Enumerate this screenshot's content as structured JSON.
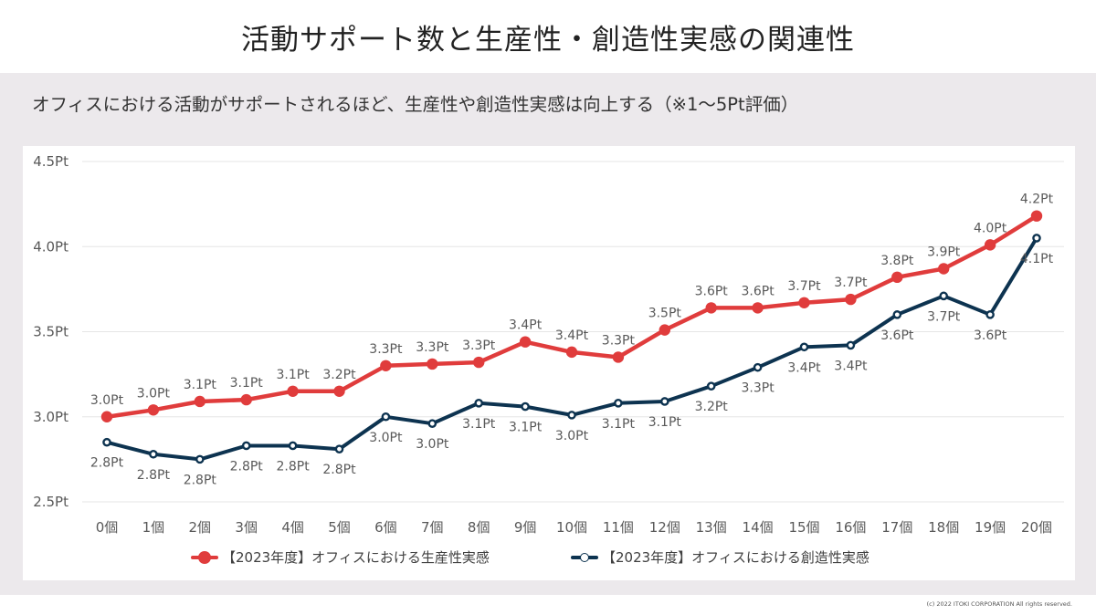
{
  "title": "活動サポート数と生産性・創造性実感の関連性",
  "subtitle": "オフィスにおける活動がサポートされるほど、生産性や創造性実感は向上する（※1〜5Pt評価）",
  "footer": "(c) 2022 ITOKI CORPORATION All rights reserved.",
  "colors": {
    "productivity": "#e03c3c",
    "creativity": "#0d3350",
    "band": "#ece9ec"
  },
  "chart_data": {
    "type": "line",
    "categories": [
      "0個",
      "1個",
      "2個",
      "3個",
      "4個",
      "5個",
      "6個",
      "7個",
      "8個",
      "9個",
      "10個",
      "11個",
      "12個",
      "13個",
      "14個",
      "15個",
      "16個",
      "17個",
      "18個",
      "19個",
      "20個"
    ],
    "ylim": [
      2.5,
      4.5
    ],
    "yticks": [
      {
        "value": 2.5,
        "label": "2.5Pt"
      },
      {
        "value": 3.0,
        "label": "3.0Pt"
      },
      {
        "value": 3.5,
        "label": "3.5Pt"
      },
      {
        "value": 4.0,
        "label": "4.0Pt"
      },
      {
        "value": 4.5,
        "label": "4.5Pt"
      }
    ],
    "grid": true,
    "legend_position": "bottom",
    "series": [
      {
        "name": "【2023年度】オフィスにおける生産性実感",
        "color": "#e03c3c",
        "marker": "filled",
        "label_position": "above",
        "values": [
          3.0,
          3.04,
          3.09,
          3.1,
          3.15,
          3.15,
          3.3,
          3.31,
          3.32,
          3.44,
          3.38,
          3.35,
          3.51,
          3.64,
          3.64,
          3.67,
          3.69,
          3.82,
          3.87,
          4.01,
          4.18
        ],
        "labels": [
          "3.0Pt",
          "3.0Pt",
          "3.1Pt",
          "3.1Pt",
          "3.1Pt",
          "3.2Pt",
          "3.3Pt",
          "3.3Pt",
          "3.3Pt",
          "3.4Pt",
          "3.4Pt",
          "3.3Pt",
          "3.5Pt",
          "3.6Pt",
          "3.6Pt",
          "3.7Pt",
          "3.7Pt",
          "3.8Pt",
          "3.9Pt",
          "4.0Pt",
          "4.2Pt"
        ]
      },
      {
        "name": "【2023年度】オフィスにおける創造性実感",
        "color": "#0d3350",
        "marker": "hollow",
        "label_position": "below",
        "values": [
          2.85,
          2.78,
          2.75,
          2.83,
          2.83,
          2.81,
          3.0,
          2.96,
          3.08,
          3.06,
          3.01,
          3.08,
          3.09,
          3.18,
          3.29,
          3.41,
          3.42,
          3.6,
          3.71,
          3.6,
          4.05
        ],
        "labels": [
          "2.8Pt",
          "2.8Pt",
          "2.8Pt",
          "2.8Pt",
          "2.8Pt",
          "2.8Pt",
          "3.0Pt",
          "3.0Pt",
          "3.1Pt",
          "3.1Pt",
          "3.0Pt",
          "3.1Pt",
          "3.1Pt",
          "3.2Pt",
          "3.3Pt",
          "3.4Pt",
          "3.4Pt",
          "3.6Pt",
          "3.7Pt",
          "3.6Pt",
          "4.1Pt"
        ]
      }
    ]
  }
}
